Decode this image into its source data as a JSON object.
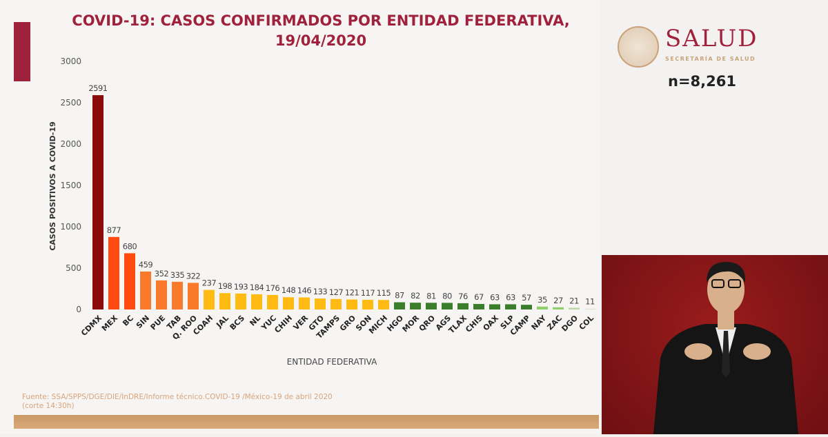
{
  "title": "COVID-19: CASOS CONFIRMADOS POR ENTIDAD FEDERATIVA, 19/04/2020",
  "source": "Fuente: SSA/SPPS/DGE/DIE/InDRE/Informe técnico.COVID-19 /México-19 de abril 2020 (corte 14:30h)",
  "brand": {
    "name": "SALUD",
    "subtitle": "SECRETARÍA DE SALUD"
  },
  "total": "n=8,261",
  "chart_data": {
    "type": "bar",
    "title": "COVID-19: CASOS CONFIRMADOS POR ENTIDAD FEDERATIVA, 19/04/2020",
    "xlabel": "ENTIDAD FEDERATIVA",
    "ylabel": "CASOS POSITIVOS A COVID-19",
    "ylim": [
      0,
      3000
    ],
    "yticks": [
      0,
      500,
      1000,
      1500,
      2000,
      2500,
      3000
    ],
    "grid": false,
    "categories": [
      "CDMX",
      "MEX",
      "BC",
      "SIN",
      "PUE",
      "TAB",
      "Q. ROO",
      "COAH",
      "JAL",
      "BCS",
      "NL",
      "YUC",
      "CHIH",
      "VER",
      "GTO",
      "TAMPS",
      "GRO",
      "SON",
      "MICH",
      "HGO",
      "MOR",
      "QRO",
      "AGS",
      "TLAX",
      "CHIS",
      "OAX",
      "SLP",
      "CAMP",
      "NAY",
      "ZAC",
      "DGO",
      "COL"
    ],
    "values": [
      2591,
      877,
      680,
      459,
      352,
      335,
      322,
      237,
      198,
      193,
      184,
      176,
      148,
      146,
      133,
      127,
      121,
      117,
      115,
      87,
      82,
      81,
      80,
      76,
      67,
      63,
      63,
      57,
      35,
      27,
      21,
      11
    ],
    "colors": [
      "#8b0a0a",
      "#ff4a10",
      "#ff4a10",
      "#f97a2a",
      "#f97a2a",
      "#f97a2a",
      "#f97a2a",
      "#ffbb12",
      "#ffbb12",
      "#ffbb12",
      "#ffbb12",
      "#ffbb12",
      "#ffbb12",
      "#ffbb12",
      "#ffbb12",
      "#ffbb12",
      "#ffbb12",
      "#ffbb12",
      "#ffbb12",
      "#3a7d2a",
      "#3a7d2a",
      "#3a7d2a",
      "#3a7d2a",
      "#3a7d2a",
      "#3a7d2a",
      "#3a7d2a",
      "#3a7d2a",
      "#3a7d2a",
      "#8fcf6a",
      "#8fcf6a",
      "#b9d9a6",
      "#dfe8d6"
    ]
  }
}
